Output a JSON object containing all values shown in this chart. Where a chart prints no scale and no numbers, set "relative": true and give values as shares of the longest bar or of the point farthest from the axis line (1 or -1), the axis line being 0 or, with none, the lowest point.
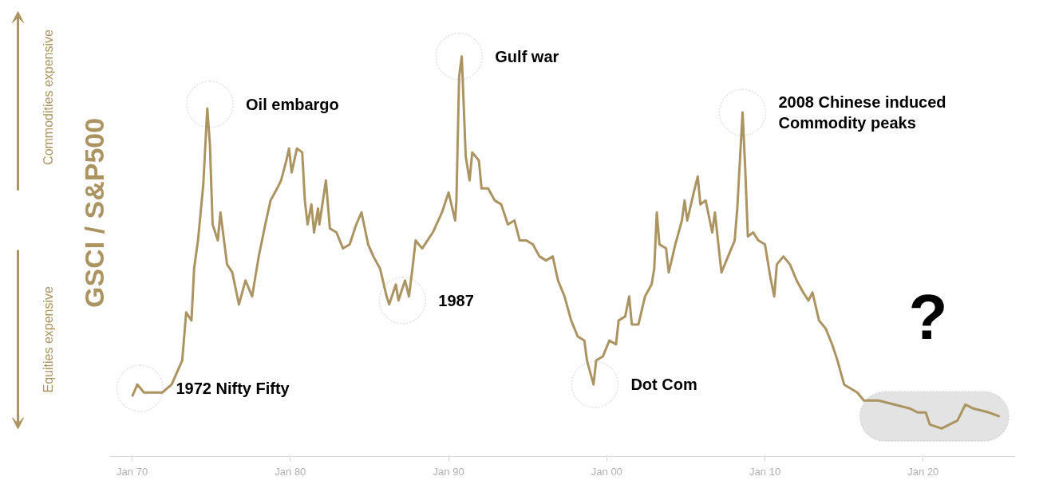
{
  "chart_data": {
    "type": "line",
    "relative": true,
    "ylabel": "GSCI / S&P500",
    "xlim": [
      "1968-08",
      "2025-11"
    ],
    "xticks": [
      {
        "value": "1970-01",
        "label": "Jan 70"
      },
      {
        "value": "1980-01",
        "label": "Jan 80"
      },
      {
        "value": "1990-01",
        "label": "Jan 90"
      },
      {
        "value": "2000-01",
        "label": "Jan 00"
      },
      {
        "value": "2010-01",
        "label": "Jan 10"
      },
      {
        "value": "2020-01",
        "label": "Jan 20"
      }
    ],
    "grid": false,
    "series": [
      {
        "color": "#ab9461",
        "x": [
          "1970-01",
          "1970-05",
          "1970-10",
          "1971-05",
          "1971-12",
          "1972-07",
          "1973-03",
          "1973-04",
          "1973-06",
          "1973-10",
          "1973-12",
          "1974-03",
          "1974-07",
          "1974-10",
          "1974-12",
          "1975-02",
          "1975-06",
          "1975-08",
          "1976-01",
          "1976-05",
          "1976-10",
          "1977-03",
          "1977-08",
          "1978-01",
          "1978-06",
          "1978-10",
          "1979-03",
          "1979-06",
          "1979-10",
          "1979-12",
          "1980-02",
          "1980-06",
          "1980-10",
          "1980-12",
          "1981-02",
          "1981-05",
          "1981-07",
          "1981-10",
          "1981-11",
          "1982-04",
          "1982-07",
          "1982-12",
          "1983-05",
          "1983-10",
          "1984-03",
          "1984-07",
          "1984-12",
          "1985-04",
          "1985-09",
          "1986-02",
          "1986-04",
          "1986-09",
          "1986-11",
          "1987-04",
          "1987-07",
          "1987-10",
          "1987-12",
          "1988-05",
          "1989-01",
          "1989-08",
          "1990-01",
          "1990-06",
          "1990-07",
          "1990-09",
          "1990-11",
          "1990-12",
          "1991-02",
          "1991-05",
          "1991-07",
          "1991-12",
          "1992-02",
          "1992-07",
          "1992-12",
          "1993-05",
          "1993-10",
          "1994-03",
          "1994-07",
          "1994-12",
          "1995-05",
          "1995-10",
          "1996-03",
          "1996-08",
          "1996-12",
          "1997-05",
          "1997-10",
          "1998-03",
          "1998-08",
          "1998-10",
          "1999-03",
          "1999-05",
          "1999-10",
          "2000-03",
          "2000-08",
          "2000-10",
          "2001-03",
          "2001-06",
          "2001-08",
          "2002-01",
          "2002-06",
          "2002-11",
          "2003-01",
          "2003-03",
          "2003-05",
          "2003-10",
          "2003-12",
          "2004-05",
          "2004-10",
          "2004-12",
          "2005-02",
          "2005-07",
          "2005-10",
          "2005-12",
          "2006-04",
          "2006-09",
          "2006-11",
          "2007-04",
          "2007-09",
          "2008-02",
          "2008-04",
          "2008-06",
          "2008-08",
          "2008-10",
          "2008-12",
          "2009-04",
          "2009-08",
          "2010-01",
          "2010-05",
          "2010-08",
          "2010-10",
          "2011-03",
          "2011-08",
          "2012-01",
          "2012-06",
          "2012-10",
          "2013-01",
          "2013-06",
          "2013-11",
          "2014-04",
          "2014-08",
          "2015-01",
          "2015-06",
          "2015-11",
          "2016-04",
          "2017-03",
          "2018-03",
          "2019-03",
          "2019-09",
          "2020-03",
          "2020-06",
          "2021-03",
          "2022-03",
          "2022-09",
          "2023-03",
          "2024-03",
          "2024-11"
        ],
        "values": [
          0.15,
          0.18,
          0.16,
          0.16,
          0.16,
          0.18,
          0.24,
          0.28,
          0.36,
          0.34,
          0.47,
          0.54,
          0.68,
          0.87,
          0.78,
          0.58,
          0.54,
          0.61,
          0.48,
          0.46,
          0.38,
          0.44,
          0.4,
          0.5,
          0.58,
          0.64,
          0.67,
          0.69,
          0.74,
          0.77,
          0.71,
          0.77,
          0.76,
          0.64,
          0.58,
          0.63,
          0.56,
          0.62,
          0.58,
          0.69,
          0.57,
          0.56,
          0.52,
          0.53,
          0.58,
          0.61,
          0.53,
          0.5,
          0.47,
          0.4,
          0.38,
          0.43,
          0.39,
          0.44,
          0.4,
          0.48,
          0.54,
          0.52,
          0.56,
          0.61,
          0.66,
          0.59,
          0.64,
          0.95,
          1.0,
          0.92,
          0.75,
          0.69,
          0.76,
          0.74,
          0.67,
          0.67,
          0.64,
          0.63,
          0.58,
          0.59,
          0.54,
          0.54,
          0.53,
          0.5,
          0.49,
          0.5,
          0.44,
          0.4,
          0.34,
          0.3,
          0.29,
          0.24,
          0.18,
          0.24,
          0.25,
          0.29,
          0.28,
          0.34,
          0.35,
          0.4,
          0.33,
          0.33,
          0.4,
          0.43,
          0.47,
          0.61,
          0.53,
          0.52,
          0.46,
          0.53,
          0.59,
          0.64,
          0.59,
          0.66,
          0.7,
          0.63,
          0.64,
          0.56,
          0.61,
          0.46,
          0.5,
          0.54,
          0.62,
          0.74,
          0.86,
          0.72,
          0.55,
          0.56,
          0.54,
          0.53,
          0.45,
          0.4,
          0.48,
          0.5,
          0.48,
          0.44,
          0.41,
          0.39,
          0.41,
          0.34,
          0.32,
          0.28,
          0.24,
          0.18,
          0.17,
          0.16,
          0.14,
          0.14,
          0.13,
          0.12,
          0.11,
          0.11,
          0.08,
          0.07,
          0.09,
          0.13,
          0.12,
          0.11,
          0.1
        ]
      }
    ],
    "bands": [
      {
        "axis": "x",
        "from": "2016-01",
        "to": "2025-06",
        "label": "?",
        "color": "#e3e3e3"
      }
    ],
    "annotations": [
      "Commodities expensive",
      "Equities expensive",
      {
        "text": "1972 Nifty Fifty",
        "x": "1970-07",
        "y": 0.17
      },
      {
        "text": "Oil embargo",
        "x": "1974-12",
        "y": 0.88
      },
      {
        "text": "Gulf war",
        "x": "1990-09",
        "y": 1.0
      },
      {
        "text": "1987",
        "x": "1987-02",
        "y": 0.39
      },
      {
        "text": "Dot Com",
        "x": "1999-04",
        "y": 0.18
      },
      {
        "text": "2008 Chinese induced\nCommodity peaks",
        "x": "2008-08",
        "y": 0.86
      }
    ]
  }
}
